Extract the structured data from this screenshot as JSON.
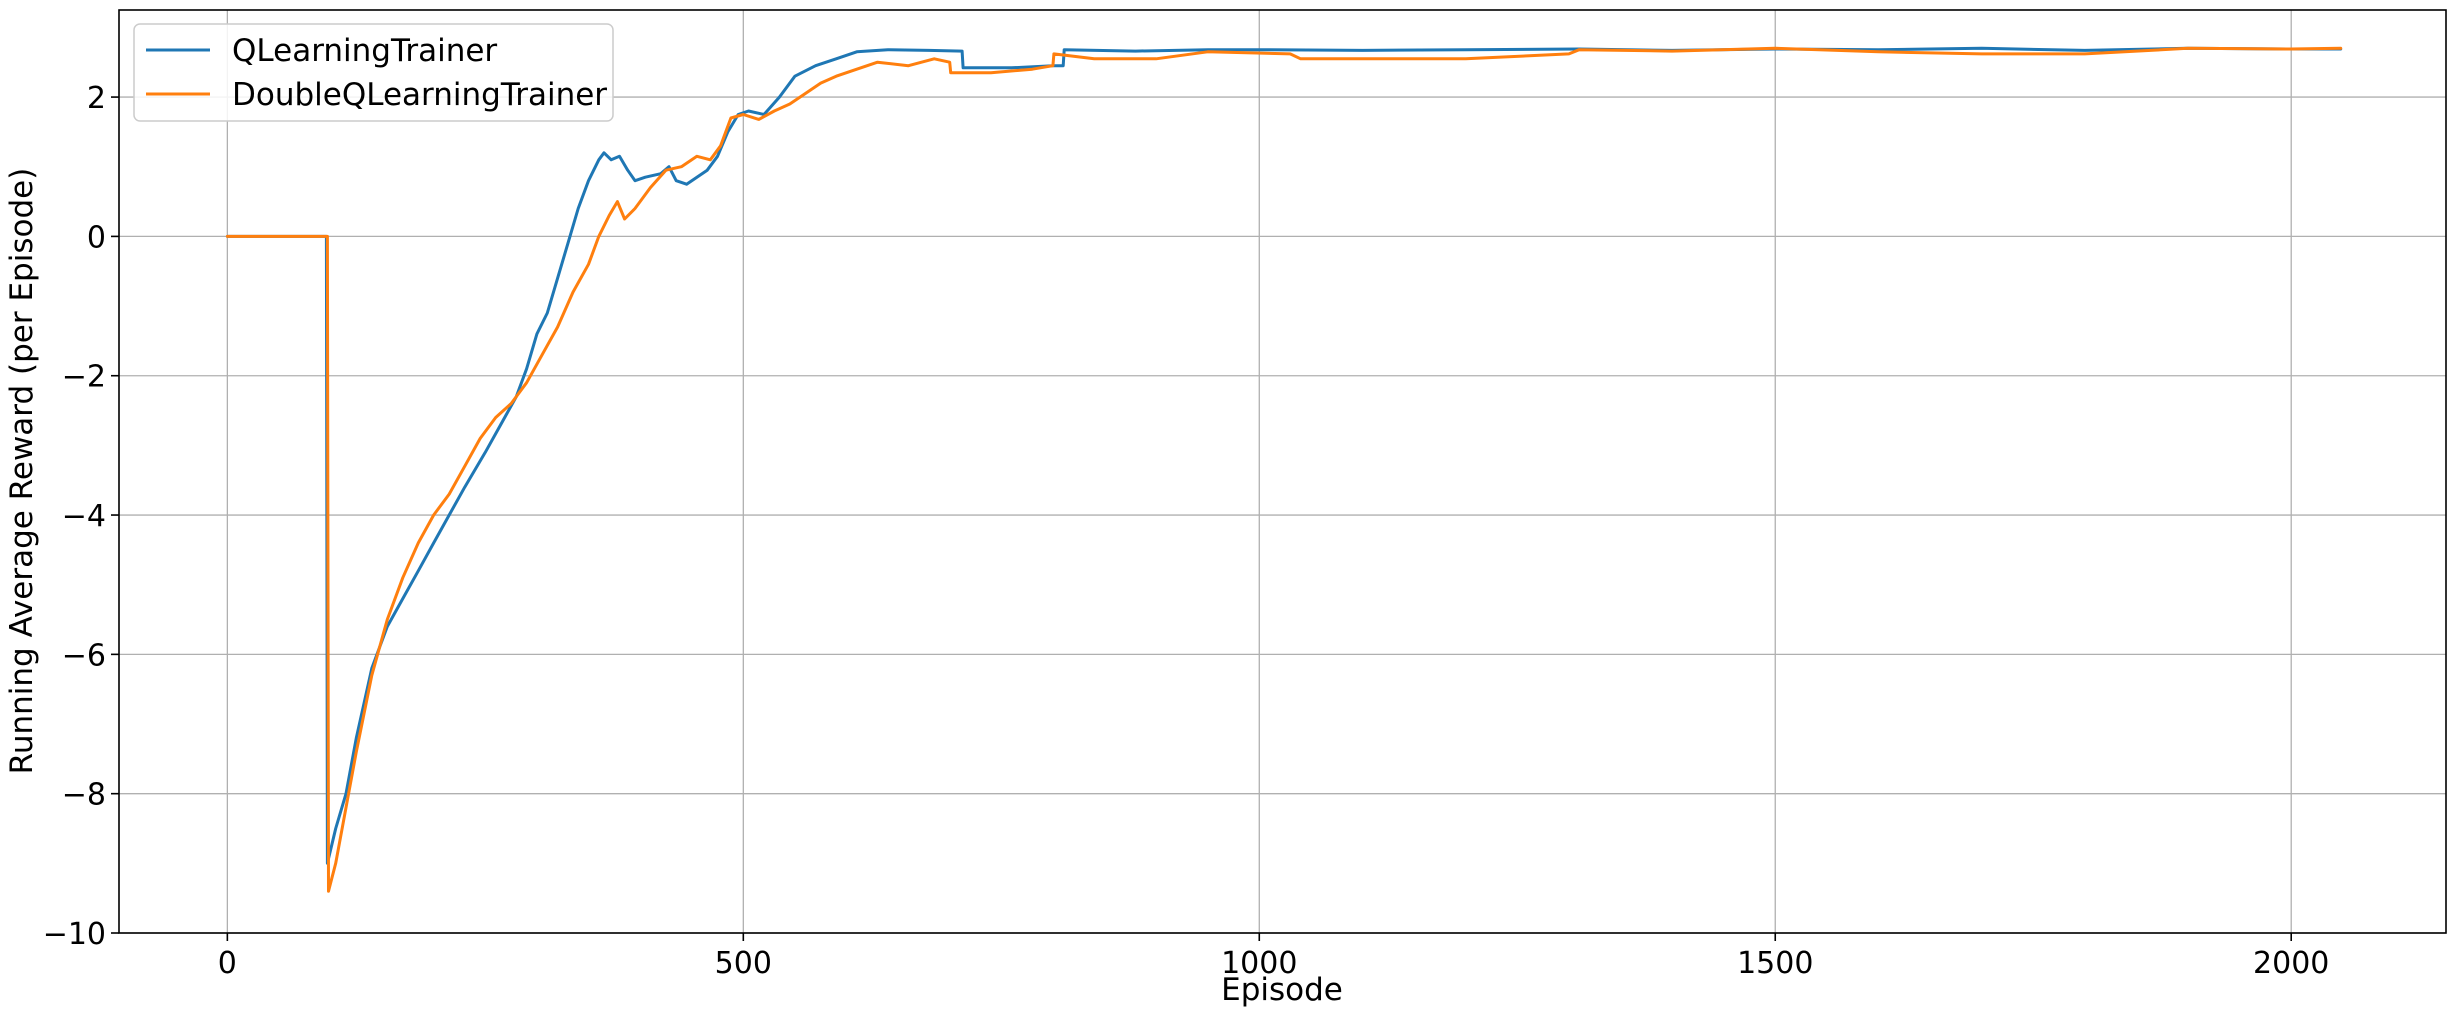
{
  "chart_data": {
    "type": "line",
    "title": "",
    "xlabel": "Episode",
    "ylabel": "Running Average Reward (per Episode)",
    "xlim": [
      -105,
      2150
    ],
    "ylim": [
      -10,
      3.25
    ],
    "xticks": [
      0,
      500,
      1000,
      1500,
      2000
    ],
    "xtick_labels": [
      "0",
      "500",
      "1000",
      "1500",
      "2000"
    ],
    "yticks": [
      -10,
      -8,
      -6,
      -4,
      -2,
      0,
      2
    ],
    "ytick_labels": [
      "−10",
      "−8",
      "−6",
      "−4",
      "−2",
      "0",
      "2"
    ],
    "grid": true,
    "legend_position": "upper-left",
    "series": [
      {
        "name": "QLearningTrainer",
        "color": "#1f77b4",
        "points": [
          [
            0,
            0
          ],
          [
            96,
            0
          ],
          [
            97,
            -9.0
          ],
          [
            105,
            -8.5
          ],
          [
            115,
            -8.0
          ],
          [
            125,
            -7.2
          ],
          [
            140,
            -6.2
          ],
          [
            155,
            -5.6
          ],
          [
            170,
            -5.2
          ],
          [
            185,
            -4.8
          ],
          [
            200,
            -4.4
          ],
          [
            215,
            -4.0
          ],
          [
            230,
            -3.6
          ],
          [
            250,
            -3.1
          ],
          [
            265,
            -2.7
          ],
          [
            280,
            -2.3
          ],
          [
            290,
            -1.9
          ],
          [
            300,
            -1.4
          ],
          [
            310,
            -1.1
          ],
          [
            320,
            -0.6
          ],
          [
            330,
            -0.1
          ],
          [
            340,
            0.4
          ],
          [
            350,
            0.8
          ],
          [
            360,
            1.1
          ],
          [
            365,
            1.2
          ],
          [
            372,
            1.1
          ],
          [
            380,
            1.15
          ],
          [
            388,
            0.95
          ],
          [
            395,
            0.8
          ],
          [
            405,
            0.85
          ],
          [
            420,
            0.9
          ],
          [
            428,
            1.0
          ],
          [
            435,
            0.8
          ],
          [
            445,
            0.75
          ],
          [
            455,
            0.85
          ],
          [
            465,
            0.95
          ],
          [
            475,
            1.15
          ],
          [
            485,
            1.5
          ],
          [
            495,
            1.75
          ],
          [
            505,
            1.8
          ],
          [
            520,
            1.75
          ],
          [
            535,
            2.0
          ],
          [
            550,
            2.3
          ],
          [
            570,
            2.45
          ],
          [
            590,
            2.55
          ],
          [
            610,
            2.65
          ],
          [
            640,
            2.68
          ],
          [
            680,
            2.67
          ],
          [
            712,
            2.66
          ],
          [
            713,
            2.42
          ],
          [
            760,
            2.42
          ],
          [
            800,
            2.45
          ],
          [
            810,
            2.45
          ],
          [
            811,
            2.68
          ],
          [
            880,
            2.66
          ],
          [
            950,
            2.68
          ],
          [
            1000,
            2.68
          ],
          [
            1100,
            2.67
          ],
          [
            1200,
            2.68
          ],
          [
            1310,
            2.69
          ],
          [
            1400,
            2.67
          ],
          [
            1500,
            2.69
          ],
          [
            1600,
            2.68
          ],
          [
            1700,
            2.7
          ],
          [
            1800,
            2.67
          ],
          [
            1900,
            2.7
          ],
          [
            2000,
            2.69
          ],
          [
            2048,
            2.69
          ]
        ]
      },
      {
        "name": "DoubleQLearningTrainer",
        "color": "#ff7f0e",
        "points": [
          [
            0,
            0
          ],
          [
            97,
            0
          ],
          [
            98,
            -9.4
          ],
          [
            105,
            -9.0
          ],
          [
            115,
            -8.2
          ],
          [
            125,
            -7.4
          ],
          [
            140,
            -6.3
          ],
          [
            155,
            -5.5
          ],
          [
            170,
            -4.9
          ],
          [
            185,
            -4.4
          ],
          [
            200,
            -4.0
          ],
          [
            215,
            -3.7
          ],
          [
            230,
            -3.3
          ],
          [
            245,
            -2.9
          ],
          [
            260,
            -2.6
          ],
          [
            275,
            -2.4
          ],
          [
            290,
            -2.1
          ],
          [
            305,
            -1.7
          ],
          [
            320,
            -1.3
          ],
          [
            335,
            -0.8
          ],
          [
            350,
            -0.4
          ],
          [
            360,
            0.0
          ],
          [
            370,
            0.3
          ],
          [
            378,
            0.5
          ],
          [
            385,
            0.25
          ],
          [
            395,
            0.4
          ],
          [
            410,
            0.7
          ],
          [
            425,
            0.95
          ],
          [
            440,
            1.0
          ],
          [
            455,
            1.15
          ],
          [
            468,
            1.1
          ],
          [
            478,
            1.3
          ],
          [
            488,
            1.7
          ],
          [
            500,
            1.75
          ],
          [
            515,
            1.68
          ],
          [
            530,
            1.8
          ],
          [
            545,
            1.9
          ],
          [
            560,
            2.05
          ],
          [
            575,
            2.2
          ],
          [
            590,
            2.3
          ],
          [
            610,
            2.4
          ],
          [
            630,
            2.5
          ],
          [
            660,
            2.45
          ],
          [
            685,
            2.55
          ],
          [
            700,
            2.5
          ],
          [
            701,
            2.35
          ],
          [
            740,
            2.35
          ],
          [
            780,
            2.4
          ],
          [
            800,
            2.45
          ],
          [
            801,
            2.62
          ],
          [
            840,
            2.55
          ],
          [
            900,
            2.55
          ],
          [
            950,
            2.65
          ],
          [
            1030,
            2.62
          ],
          [
            1040,
            2.55
          ],
          [
            1100,
            2.55
          ],
          [
            1200,
            2.55
          ],
          [
            1300,
            2.62
          ],
          [
            1310,
            2.68
          ],
          [
            1400,
            2.66
          ],
          [
            1500,
            2.7
          ],
          [
            1600,
            2.65
          ],
          [
            1700,
            2.62
          ],
          [
            1800,
            2.62
          ],
          [
            1900,
            2.7
          ],
          [
            2000,
            2.69
          ],
          [
            2048,
            2.7
          ]
        ]
      }
    ]
  }
}
